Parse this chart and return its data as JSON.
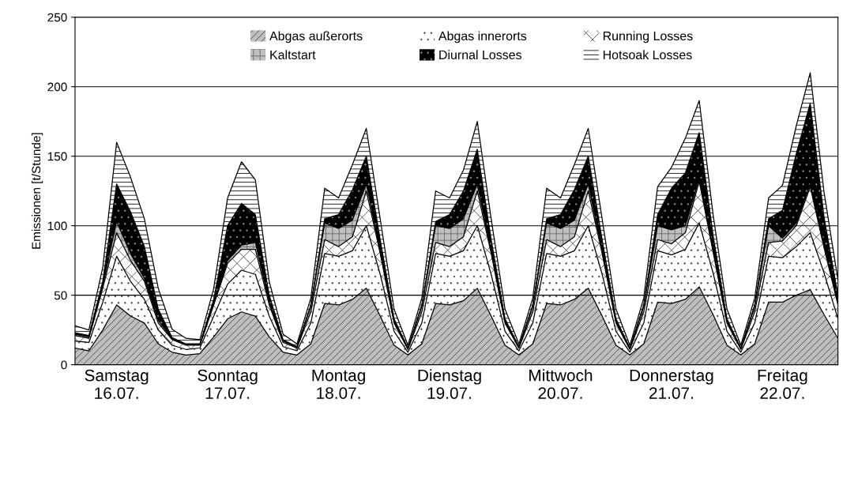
{
  "chart_data": {
    "type": "area",
    "stacked": true,
    "ylabel": "Emissionen [t/Stunde]",
    "ylim": [
      0,
      250
    ],
    "yticks": [
      0,
      50,
      100,
      150,
      200,
      250
    ],
    "categories": [
      null,
      null,
      null,
      "Samstag\n16.07.",
      null,
      null,
      null,
      null,
      null,
      null,
      null,
      "Sonntag\n17.07.",
      null,
      null,
      null,
      null,
      null,
      null,
      null,
      "Montag\n18.07.",
      null,
      null,
      null,
      null,
      null,
      null,
      null,
      "Dienstag\n19.07.",
      null,
      null,
      null,
      null,
      null,
      null,
      null,
      "Mittwoch\n20.07.",
      null,
      null,
      null,
      null,
      null,
      null,
      null,
      "Donnerstag\n21.07.",
      null,
      null,
      null,
      null,
      null,
      null,
      null,
      "Freitag\n22.07.",
      null,
      null,
      null,
      null
    ],
    "grid": "y",
    "legend": "top",
    "series": [
      {
        "name": "Abgas außerorts",
        "color": "#bfbfbf",
        "values": [
          12,
          10,
          25,
          43,
          35,
          30,
          15,
          9,
          7,
          8,
          20,
          33,
          38,
          35,
          20,
          9,
          7,
          15,
          44,
          43,
          47,
          55,
          35,
          14,
          7,
          15,
          44,
          43,
          46,
          55,
          35,
          14,
          7,
          15,
          44,
          43,
          47,
          55,
          35,
          14,
          7,
          15,
          45,
          44,
          47,
          56,
          36,
          14,
          7,
          15,
          45,
          45,
          50,
          54,
          36,
          19
        ]
      },
      {
        "name": "Abgas innerorts",
        "color": "#ffffff",
        "values": [
          5,
          6,
          20,
          35,
          25,
          17,
          10,
          5,
          4,
          4,
          15,
          25,
          30,
          30,
          15,
          4,
          3,
          15,
          36,
          35,
          35,
          45,
          30,
          10,
          2,
          15,
          36,
          35,
          36,
          45,
          30,
          10,
          3,
          15,
          36,
          35,
          35,
          45,
          30,
          10,
          2,
          15,
          37,
          35,
          36,
          46,
          30,
          10,
          2,
          15,
          33,
          32,
          35,
          41,
          30,
          14
        ]
      },
      {
        "name": "Running Losses",
        "color": "#ffffff",
        "values": [
          4,
          3,
          10,
          17,
          15,
          13,
          5,
          4,
          3,
          2,
          8,
          15,
          15,
          18,
          8,
          3,
          2,
          8,
          10,
          7,
          10,
          25,
          15,
          6,
          2,
          8,
          8,
          7,
          10,
          25,
          15,
          6,
          2,
          8,
          10,
          7,
          10,
          25,
          15,
          6,
          2,
          8,
          8,
          8,
          12,
          30,
          15,
          6,
          2,
          8,
          10,
          12,
          15,
          33,
          18,
          10
        ]
      },
      {
        "name": "Kaltstart",
        "color": "#c0c0c0",
        "values": [
          1,
          1,
          2,
          8,
          5,
          2,
          2,
          0.5,
          0.5,
          0.5,
          1,
          2,
          3,
          5,
          2,
          1,
          0.5,
          4,
          12,
          13,
          12,
          5,
          2,
          1,
          0.5,
          4,
          12,
          13,
          13,
          5,
          2,
          1,
          0.5,
          4,
          12,
          13,
          12,
          5,
          2,
          1,
          0.5,
          4,
          10,
          10,
          5,
          2,
          2,
          1,
          0.5,
          4,
          12,
          2,
          2,
          2,
          2,
          2
        ]
      },
      {
        "name": "Diurnal Losses",
        "color": "#000000",
        "values": [
          1,
          1,
          3,
          27,
          30,
          23,
          8,
          1,
          0.5,
          0.5,
          3,
          25,
          30,
          20,
          5,
          1,
          0.5,
          1,
          3,
          10,
          22,
          20,
          8,
          2,
          0.5,
          1,
          3,
          10,
          20,
          25,
          8,
          2,
          0.5,
          1,
          3,
          10,
          22,
          20,
          8,
          2,
          0.5,
          1,
          8,
          30,
          38,
          33,
          10,
          2,
          0.5,
          1,
          5,
          20,
          50,
          58,
          20,
          5
        ]
      },
      {
        "name": "Hotsoak Losses",
        "color": "#ffffff",
        "values": [
          5,
          4,
          10,
          30,
          25,
          20,
          15,
          6,
          4,
          3,
          8,
          20,
          30,
          25,
          10,
          4,
          2,
          5,
          22,
          12,
          18,
          20,
          15,
          7,
          2,
          5,
          22,
          12,
          15,
          20,
          15,
          7,
          2,
          5,
          22,
          12,
          18,
          20,
          15,
          7,
          2,
          5,
          20,
          15,
          25,
          23,
          15,
          7,
          2,
          5,
          15,
          18,
          20,
          22,
          18,
          11
        ]
      }
    ]
  }
}
